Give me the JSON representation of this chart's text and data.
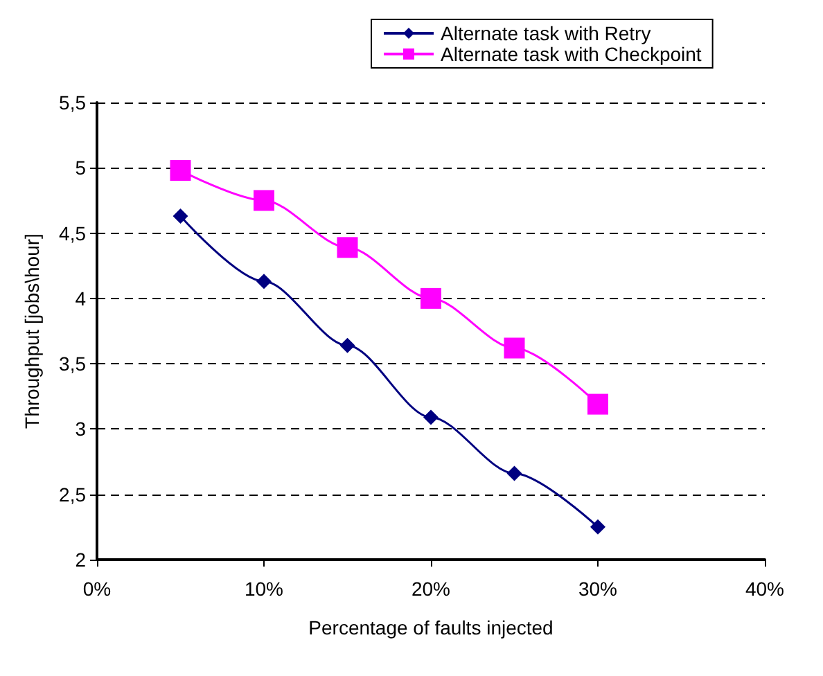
{
  "chart_data": {
    "type": "line",
    "xlabel": "Percentage of faults injected",
    "ylabel": "Throughput [jobs\\hour]",
    "x": [
      5,
      10,
      15,
      20,
      25,
      30
    ],
    "series": [
      {
        "name": "Alternate task with Retry",
        "color": "#000080",
        "marker": "diamond",
        "values": [
          4.63,
          4.13,
          3.64,
          3.09,
          2.66,
          2.25
        ]
      },
      {
        "name": "Alternate task with Checkpoint",
        "color": "#ff00ff",
        "marker": "square",
        "values": [
          4.98,
          4.75,
          4.39,
          4.0,
          3.62,
          3.19
        ]
      }
    ],
    "xlim": [
      0,
      40
    ],
    "xticks": [
      {
        "value": 0,
        "label": "0%"
      },
      {
        "value": 10,
        "label": "10%"
      },
      {
        "value": 20,
        "label": "20%"
      },
      {
        "value": 30,
        "label": "30%"
      },
      {
        "value": 40,
        "label": "40%"
      }
    ],
    "ylim": [
      2,
      5.5
    ],
    "yticks": [
      {
        "value": 2,
        "label": "2"
      },
      {
        "value": 2.5,
        "label": "2,5"
      },
      {
        "value": 3,
        "label": "3"
      },
      {
        "value": 3.5,
        "label": "3,5"
      },
      {
        "value": 4,
        "label": "4"
      },
      {
        "value": 4.5,
        "label": "4,5"
      },
      {
        "value": 5,
        "label": "5"
      },
      {
        "value": 5.5,
        "label": "5,5"
      }
    ],
    "grid": "y",
    "legend": "top",
    "line_style": "solid"
  }
}
